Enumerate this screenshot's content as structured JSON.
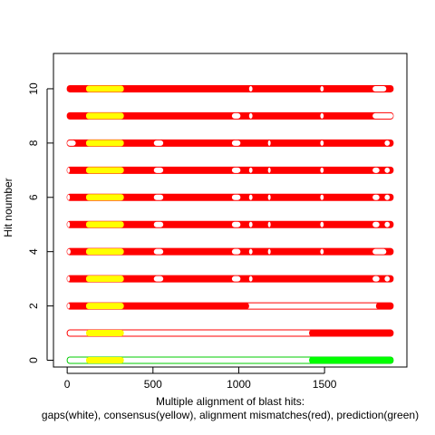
{
  "chart_data": {
    "type": "segments",
    "xlabel_line1": "Multiple alignment of blast hits:",
    "xlabel_line2": "gaps(white), consensus(yellow), alignment mismatches(red), prediction(green)",
    "ylabel": "Hit noumber",
    "xlim": [
      -80,
      1980
    ],
    "ylim": [
      -0.25,
      11.3
    ],
    "x_ticks": [
      0,
      500,
      1000,
      1500
    ],
    "y_ticks": [
      0,
      2,
      4,
      6,
      8,
      10
    ],
    "colors": {
      "mismatch": "#ff0000",
      "consensus": "#ffff00",
      "gap": "#ffffff",
      "prediction": "#00ff00",
      "outline_red": "#ff0000",
      "outline_green": "#00cc00"
    },
    "hits": [
      {
        "hit": 0,
        "kind": "prediction",
        "outline": [
          0,
          1900
        ],
        "filled": [
          [
            1410,
            1900
          ]
        ],
        "consensus": [
          [
            110,
            330
          ]
        ],
        "gaps": []
      },
      {
        "hit": 1,
        "kind": "blast",
        "outline": [
          0,
          1900
        ],
        "filled": [
          [
            1410,
            1900
          ]
        ],
        "consensus": [
          [
            110,
            330
          ]
        ],
        "gaps": []
      },
      {
        "hit": 2,
        "kind": "blast",
        "outline": [
          0,
          1900
        ],
        "filled": [
          [
            0,
            1060
          ],
          [
            1800,
            1900
          ]
        ],
        "consensus": [
          [
            110,
            330
          ]
        ],
        "gaps": [
          [
            0,
            15
          ]
        ]
      },
      {
        "hit": 3,
        "kind": "blast",
        "outline": [
          0,
          1900
        ],
        "filled": [
          [
            0,
            1900
          ]
        ],
        "consensus": [
          [
            110,
            330
          ]
        ],
        "gaps": [
          [
            0,
            15
          ],
          [
            505,
            560
          ],
          [
            960,
            1010
          ],
          [
            1060,
            1080
          ],
          [
            1780,
            1820
          ],
          [
            1850,
            1880
          ]
        ]
      },
      {
        "hit": 4,
        "kind": "blast",
        "outline": [
          0,
          1900
        ],
        "filled": [
          [
            0,
            1900
          ]
        ],
        "consensus": [
          [
            110,
            330
          ]
        ],
        "gaps": [
          [
            0,
            20
          ],
          [
            505,
            560
          ],
          [
            960,
            1010
          ],
          [
            1060,
            1080
          ],
          [
            1170,
            1185
          ],
          [
            1475,
            1495
          ],
          [
            1780,
            1860
          ]
        ]
      },
      {
        "hit": 5,
        "kind": "blast",
        "outline": [
          0,
          1900
        ],
        "filled": [
          [
            0,
            1900
          ]
        ],
        "consensus": [
          [
            110,
            330
          ]
        ],
        "gaps": [
          [
            0,
            15
          ],
          [
            505,
            560
          ],
          [
            960,
            1010
          ],
          [
            1060,
            1080
          ],
          [
            1170,
            1185
          ],
          [
            1475,
            1495
          ],
          [
            1780,
            1820
          ],
          [
            1850,
            1880
          ]
        ]
      },
      {
        "hit": 6,
        "kind": "blast",
        "outline": [
          0,
          1900
        ],
        "filled": [
          [
            0,
            1900
          ]
        ],
        "consensus": [
          [
            110,
            330
          ]
        ],
        "gaps": [
          [
            0,
            15
          ],
          [
            505,
            560
          ],
          [
            960,
            1010
          ],
          [
            1060,
            1080
          ],
          [
            1170,
            1185
          ],
          [
            1475,
            1495
          ],
          [
            1780,
            1820
          ],
          [
            1850,
            1880
          ]
        ]
      },
      {
        "hit": 7,
        "kind": "blast",
        "outline": [
          0,
          1900
        ],
        "filled": [
          [
            0,
            1900
          ]
        ],
        "consensus": [
          [
            110,
            330
          ]
        ],
        "gaps": [
          [
            0,
            15
          ],
          [
            505,
            560
          ],
          [
            960,
            1010
          ],
          [
            1060,
            1080
          ],
          [
            1170,
            1185
          ],
          [
            1475,
            1495
          ],
          [
            1780,
            1820
          ],
          [
            1850,
            1880
          ]
        ]
      },
      {
        "hit": 8,
        "kind": "blast",
        "outline": [
          0,
          1900
        ],
        "filled": [
          [
            0,
            1900
          ]
        ],
        "consensus": [
          [
            110,
            330
          ]
        ],
        "gaps": [
          [
            0,
            50
          ],
          [
            505,
            560
          ],
          [
            960,
            1010
          ],
          [
            1170,
            1185
          ],
          [
            1475,
            1495
          ],
          [
            1850,
            1880
          ]
        ]
      },
      {
        "hit": 9,
        "kind": "blast",
        "outline": [
          0,
          1900
        ],
        "filled": [
          [
            0,
            1900
          ]
        ],
        "consensus": [
          [
            110,
            330
          ]
        ],
        "gaps": [
          [
            960,
            1010
          ],
          [
            1060,
            1080
          ],
          [
            1475,
            1495
          ],
          [
            1780,
            1900
          ]
        ]
      },
      {
        "hit": 10,
        "kind": "blast",
        "outline": [
          0,
          1900
        ],
        "filled": [
          [
            0,
            1900
          ]
        ],
        "consensus": [
          [
            110,
            330
          ]
        ],
        "gaps": [
          [
            1060,
            1080
          ],
          [
            1475,
            1495
          ],
          [
            1780,
            1860
          ]
        ]
      }
    ]
  }
}
